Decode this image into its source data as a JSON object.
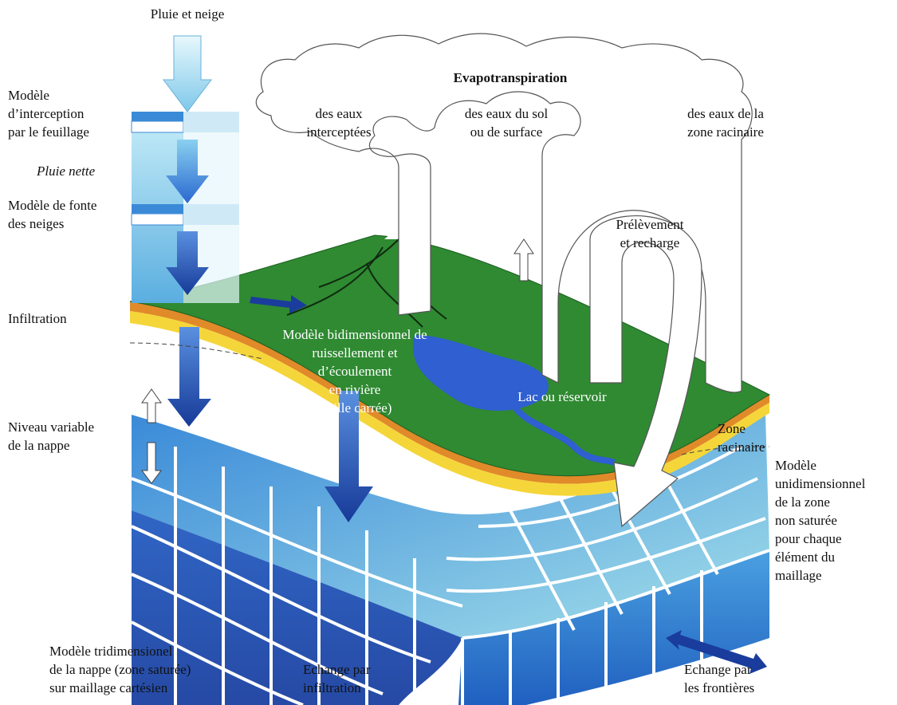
{
  "labels": {
    "pluie_neige": "Pluie et neige",
    "interception": "Modèle\nd’interception\npar le feuillage",
    "pluie_nette": "Pluie nette",
    "fonte": "Modèle de fonte\ndes neiges",
    "infiltration": "Infiltration",
    "niveau": "Niveau variable\nde la nappe",
    "evapo_title": "Evapotranspiration",
    "evapo_intercept": "des eaux\ninterceptées",
    "evapo_sol": "des eaux du sol\nou de surface",
    "evapo_racinaire": "des eaux de la\nzone racinaire",
    "prelevement": "Prélèvement\net recharge",
    "ruissellement": "Modèle bidimensionnel de\nruissellement et\nd’écoulement\nen rivière\n(grille carrée)",
    "lac": "Lac ou réservoir",
    "zone_racinaire": "Zone\nracinaire",
    "unidim": "Modèle\nunidimensionnel\nde la zone\nnon saturée\npour chaque\nélément du\nmaillage",
    "tridim": "Modèle tridimensionel\nde la nappe (zone saturée)\nsur maillage cartésien",
    "echange_infil": "Echange par\ninfiltration",
    "echange_front": "Echange par\nles frontières"
  },
  "colors": {
    "grass": "#2f8a32",
    "lake": "#2f5fd0",
    "soil_orange": "#e08a2a",
    "soil_yellow": "#f5d63a",
    "aquifer_dark": "#1f4fb0",
    "aquifer_light": "#78c6dc",
    "arrow_dark": "#1a3c9c",
    "arrow_light": "#7ec8ea"
  }
}
